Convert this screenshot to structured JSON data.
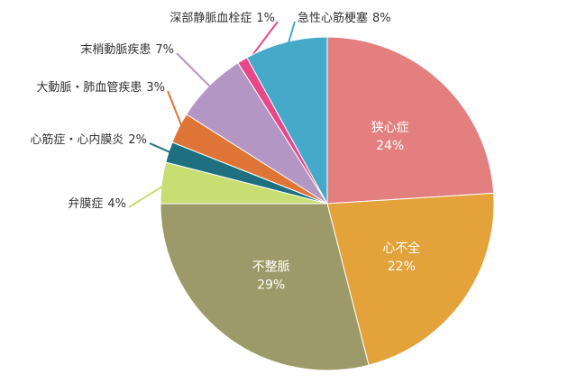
{
  "chart_data": {
    "type": "pie",
    "categories": [
      "狭心症",
      "心不全",
      "不整脈",
      "弁膜症",
      "心筋症・心内膜炎",
      "大動脈・肺血管疾患",
      "末梢動脈疾患",
      "深部静脈血栓症",
      "急性心筋梗塞"
    ],
    "values": [
      24,
      22,
      29,
      4,
      2,
      3,
      7,
      1,
      8
    ],
    "value_labels": [
      "24%",
      "22%",
      "29%",
      "4%",
      "2%",
      "3%",
      "7%",
      "1%",
      "8%"
    ],
    "colors": [
      "#e47f7f",
      "#e3a23a",
      "#9b9a68",
      "#c8dd72",
      "#1e6f80",
      "#de7537",
      "#b496c4",
      "#e8478a",
      "#45a9c9"
    ]
  }
}
